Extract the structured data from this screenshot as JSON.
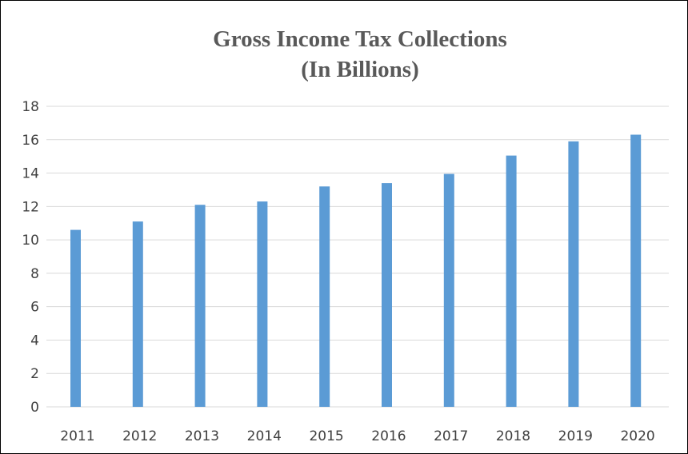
{
  "chart_data": {
    "type": "bar",
    "title": [
      "Gross Income Tax Collections",
      "(In Billions)"
    ],
    "categories": [
      "2011",
      "2012",
      "2013",
      "2014",
      "2015",
      "2016",
      "2017",
      "2018",
      "2019",
      "2020"
    ],
    "series": [
      {
        "values": [
          10.6,
          11.1,
          12.1,
          12.3,
          13.2,
          13.4,
          13.95,
          15.05,
          15.9,
          16.3
        ],
        "color": "#5b9bd5"
      }
    ],
    "xlabel": "",
    "ylabel": "",
    "ylim": [
      0,
      18
    ],
    "yticks": [
      "0",
      "2",
      "4",
      "6",
      "8",
      "10",
      "12",
      "14",
      "16",
      "18"
    ],
    "grid": true,
    "legend": "none"
  }
}
